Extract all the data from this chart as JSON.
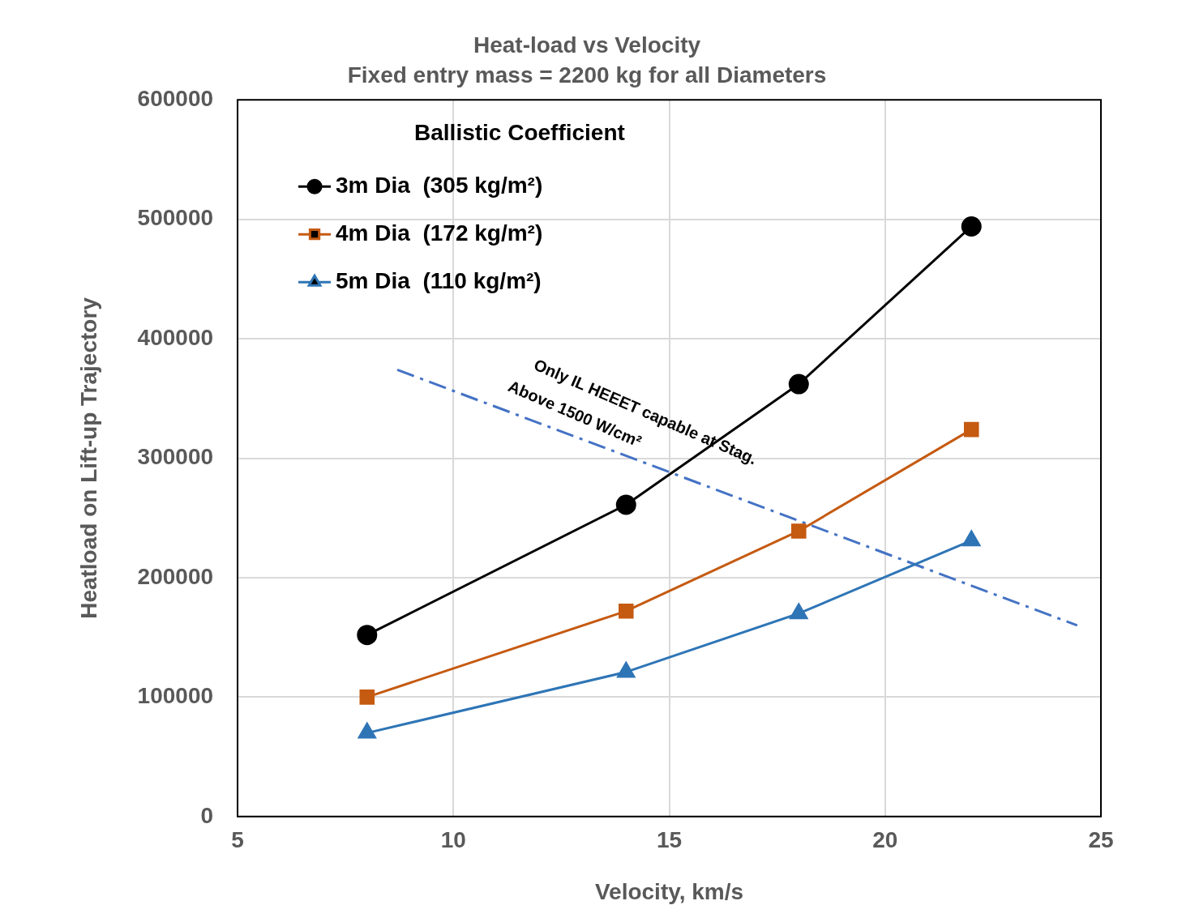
{
  "chart_data": {
    "type": "line",
    "title": "Heat-load vs Velocity",
    "subtitle": "Fixed entry mass = 2200 kg for all Diameters",
    "xlabel": "Velocity, km/s",
    "ylabel": "Heatload on Lift-up Trajectory",
    "legend_title": "Ballistic Coefficient",
    "legend": "top left",
    "grid": true,
    "xlim": [
      5,
      25
    ],
    "xticks": [
      5,
      10,
      15,
      20,
      25
    ],
    "ylim": [
      0,
      600000
    ],
    "yticks": [
      0,
      100000,
      200000,
      300000,
      400000,
      500000,
      600000
    ],
    "series": [
      {
        "name": "3m Dia  (305 kg/m²)",
        "color": "#000000",
        "marker": "circle",
        "x": [
          8,
          14,
          18,
          22
        ],
        "values": [
          152000,
          261000,
          362000,
          494000
        ]
      },
      {
        "name": "4m Dia  (172 kg/m²)",
        "color": "#c55a11",
        "marker": "square",
        "x": [
          8,
          14,
          18,
          22
        ],
        "values": [
          100000,
          172000,
          239000,
          324000
        ]
      },
      {
        "name": "5m Dia  (110 kg/m²)",
        "color": "#2e75b6",
        "marker": "triangle",
        "x": [
          8,
          14,
          18,
          22
        ],
        "values": [
          70000,
          121000,
          170000,
          231000
        ]
      },
      {
        "color": "#4472c4",
        "marker": "none",
        "line_style": "dashed",
        "x": [
          8.7,
          24.45
        ],
        "values": [
          374000,
          160000
        ]
      }
    ],
    "annotations": [
      "Only IL HEEET capable at Stag.",
      "Above 1500 W/cm²"
    ]
  }
}
